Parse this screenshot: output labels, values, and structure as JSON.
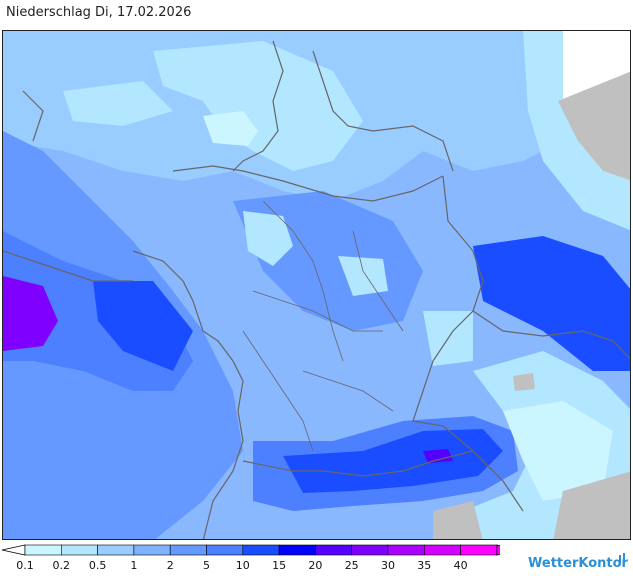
{
  "header": {
    "title": "Niederschlag Di, 17.02.2026"
  },
  "legend": {
    "unit": "",
    "classes": [
      {
        "label": "0.1",
        "color": "#ccf6ff"
      },
      {
        "label": "0.2",
        "color": "#b3e6ff"
      },
      {
        "label": "0.5",
        "color": "#99ccff"
      },
      {
        "label": "1",
        "color": "#80b3ff"
      },
      {
        "label": "2",
        "color": "#6699ff"
      },
      {
        "label": "5",
        "color": "#4d80ff"
      },
      {
        "label": "10",
        "color": "#1a4dff"
      },
      {
        "label": "15",
        "color": "#0000ff"
      },
      {
        "label": "20",
        "color": "#5500ff"
      },
      {
        "label": "25",
        "color": "#8000ff"
      },
      {
        "label": "30",
        "color": "#aa00ff"
      },
      {
        "label": "35",
        "color": "#d400ff"
      },
      {
        "label": "40",
        "color": "#ff00ff"
      }
    ]
  },
  "brand": {
    "name": "WetterKontor",
    "icon": "brand-logo-icon",
    "color": "#2a8fd4"
  },
  "map": {
    "terrain_color": "#c0c0c0",
    "border_color": "#666666"
  }
}
